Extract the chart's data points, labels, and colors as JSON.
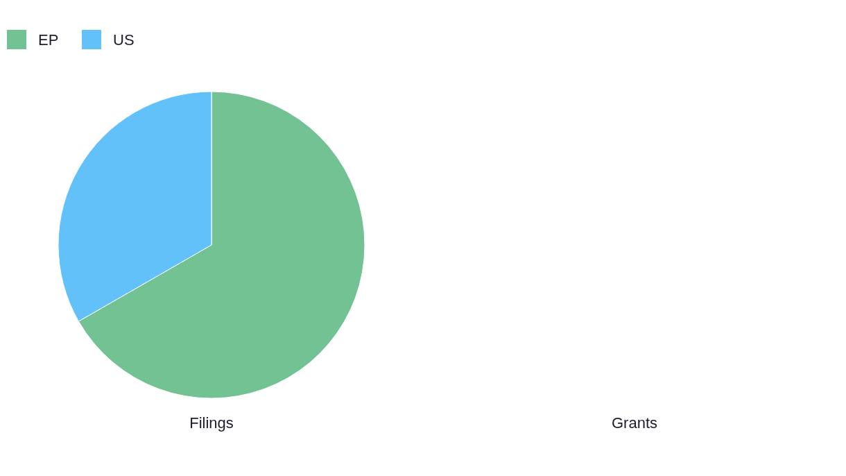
{
  "chart_data": [
    {
      "type": "pie",
      "title": "Filings",
      "categories": [
        "EP",
        "US"
      ],
      "values": [
        66.7,
        33.3
      ],
      "colors": [
        "#73c293",
        "#63c1f9"
      ],
      "legend": "top left"
    },
    {
      "type": "other",
      "title": "Grants"
    }
  ]
}
